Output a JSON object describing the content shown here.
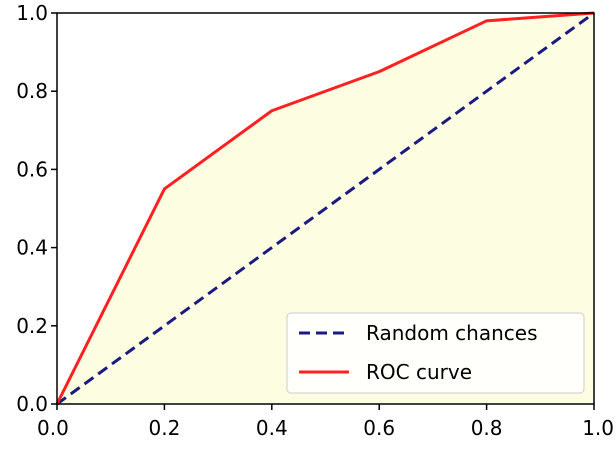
{
  "chart_data": {
    "type": "line",
    "title": "",
    "xlabel": "",
    "ylabel": "",
    "xlim": [
      0.0,
      1.0
    ],
    "ylim": [
      0.0,
      1.0
    ],
    "xticks": [
      "0.0",
      "0.2",
      "0.4",
      "0.6",
      "0.8",
      "1.0"
    ],
    "yticks": [
      "0.0",
      "0.2",
      "0.4",
      "0.6",
      "0.8",
      "1.0"
    ],
    "grid": false,
    "legend_position": "bottom-right",
    "fill_under_curve": "#fdfde2",
    "series": [
      {
        "name": "Random chances",
        "style": "dashed",
        "color": "#1a1a80",
        "x": [
          0.0,
          1.0
        ],
        "y": [
          0.0,
          1.0
        ]
      },
      {
        "name": "ROC curve",
        "style": "solid",
        "color": "#ff2020",
        "x": [
          0.0,
          0.2,
          0.4,
          0.6,
          0.8,
          1.0
        ],
        "y": [
          0.0,
          0.55,
          0.75,
          0.85,
          0.98,
          1.0
        ]
      }
    ]
  }
}
